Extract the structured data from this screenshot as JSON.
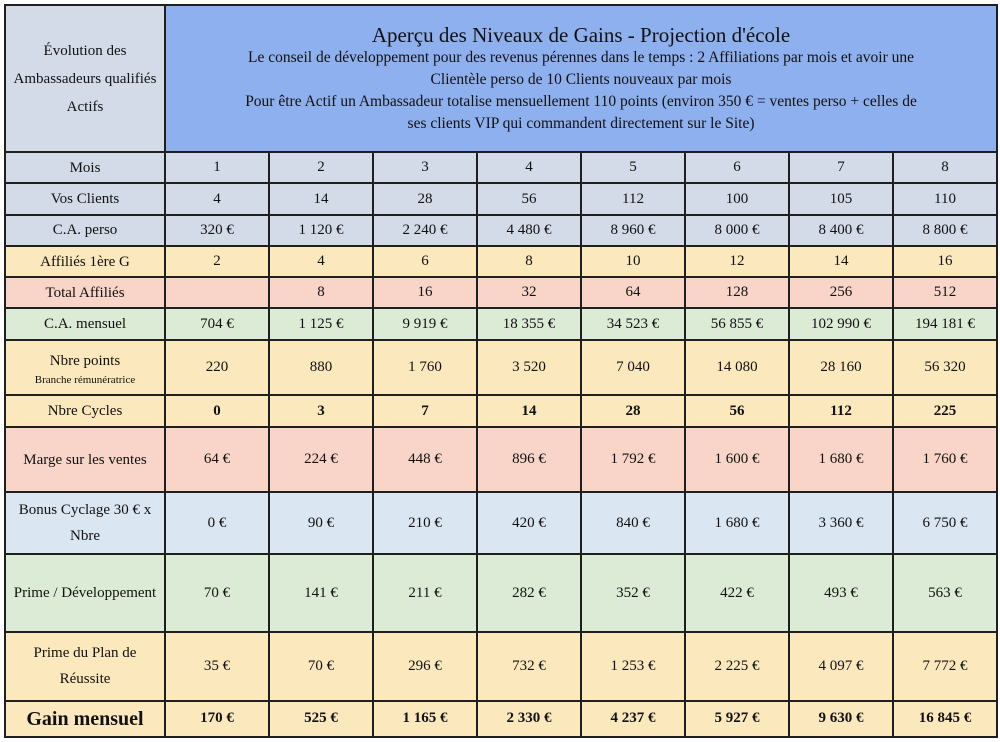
{
  "corner_label": "Évolution des Ambassadeurs qualifiés Actifs",
  "header": {
    "title": "Aperçu des Niveaux de Gains - Projection d'école",
    "lines": [
      "Le conseil de développement pour des revenus pérennes dans le temps : 2 Affiliations par mois et avoir une",
      "Clientèle perso de 10 Clients nouveaux par mois",
      "Pour être Actif un Ambassadeur totalise mensuellement 110 points (environ 350 € = ventes perso + celles de",
      "ses clients VIP qui commandent directement sur le Site)"
    ]
  },
  "rows": [
    {
      "label": "Mois",
      "sublabel": "",
      "values": [
        "1",
        "2",
        "3",
        "4",
        "5",
        "6",
        "7",
        "8"
      ]
    },
    {
      "label": "Vos Clients",
      "sublabel": "",
      "values": [
        "4",
        "14",
        "28",
        "56",
        "112",
        "100",
        "105",
        "110"
      ]
    },
    {
      "label": "C.A. perso",
      "sublabel": "",
      "values": [
        "320 €",
        "1 120 €",
        "2 240 €",
        "4 480 €",
        "8 960 €",
        "8 000 €",
        "8 400 €",
        "8 800 €"
      ]
    },
    {
      "label": "Affiliés 1ère G",
      "sublabel": "",
      "values": [
        "2",
        "4",
        "6",
        "8",
        "10",
        "12",
        "14",
        "16"
      ]
    },
    {
      "label": "Total Affiliés",
      "sublabel": "",
      "values": [
        "",
        "8",
        "16",
        "32",
        "64",
        "128",
        "256",
        "512"
      ]
    },
    {
      "label": "C.A. mensuel",
      "sublabel": "",
      "values": [
        "704 €",
        "1 125 €",
        "9 919 €",
        "18 355 €",
        "34 523 €",
        "56 855 €",
        "102 990 €",
        "194 181 €"
      ]
    },
    {
      "label": "Nbre points",
      "sublabel": "Branche rémunératrice",
      "values": [
        "220",
        "880",
        "1 760",
        "3 520",
        "7 040",
        "14 080",
        "28 160",
        "56 320"
      ]
    },
    {
      "label": "Nbre Cycles",
      "sublabel": "",
      "values": [
        "0",
        "3",
        "7",
        "14",
        "28",
        "56",
        "112",
        "225"
      ]
    },
    {
      "label": "Marge sur les ventes",
      "sublabel": "",
      "values": [
        "64 €",
        "224 €",
        "448 €",
        "896 €",
        "1 792 €",
        "1 600 €",
        "1 680 €",
        "1 760 €"
      ]
    },
    {
      "label": "Bonus Cyclage 30 € x Nbre",
      "sublabel": "",
      "values": [
        "0 €",
        "90 €",
        "210 €",
        "420 €",
        "840 €",
        "1 680 €",
        "3 360 €",
        "6 750 €"
      ]
    },
    {
      "label": "Prime / Développement",
      "sublabel": "",
      "values": [
        "70 €",
        "141 €",
        "211 €",
        "282 €",
        "352 €",
        "422 €",
        "493 €",
        "563 €"
      ]
    },
    {
      "label": "Prime du Plan de Réussite",
      "sublabel": "",
      "values": [
        "35 €",
        "70 €",
        "296 €",
        "732 €",
        "1 253 €",
        "2 225 €",
        "4 097 €",
        "7 772 €"
      ]
    },
    {
      "label": "Gain mensuel",
      "sublabel": "",
      "values": [
        "170 €",
        "525 €",
        "1 165 €",
        "2 330 €",
        "4 237 €",
        "5 927 €",
        "9 630 €",
        "16 845 €"
      ]
    }
  ],
  "colors": {
    "header_bg": "#8fb0ef",
    "corner_bg": "#d3dbe9",
    "row_blue": "#d3dbe9",
    "row_yellow": "#fbe8bd",
    "row_pink": "#f8d5c8",
    "row_green": "#dcebd6",
    "row_lightblue": "#dbe6f3",
    "gain_text": "#c00000"
  }
}
